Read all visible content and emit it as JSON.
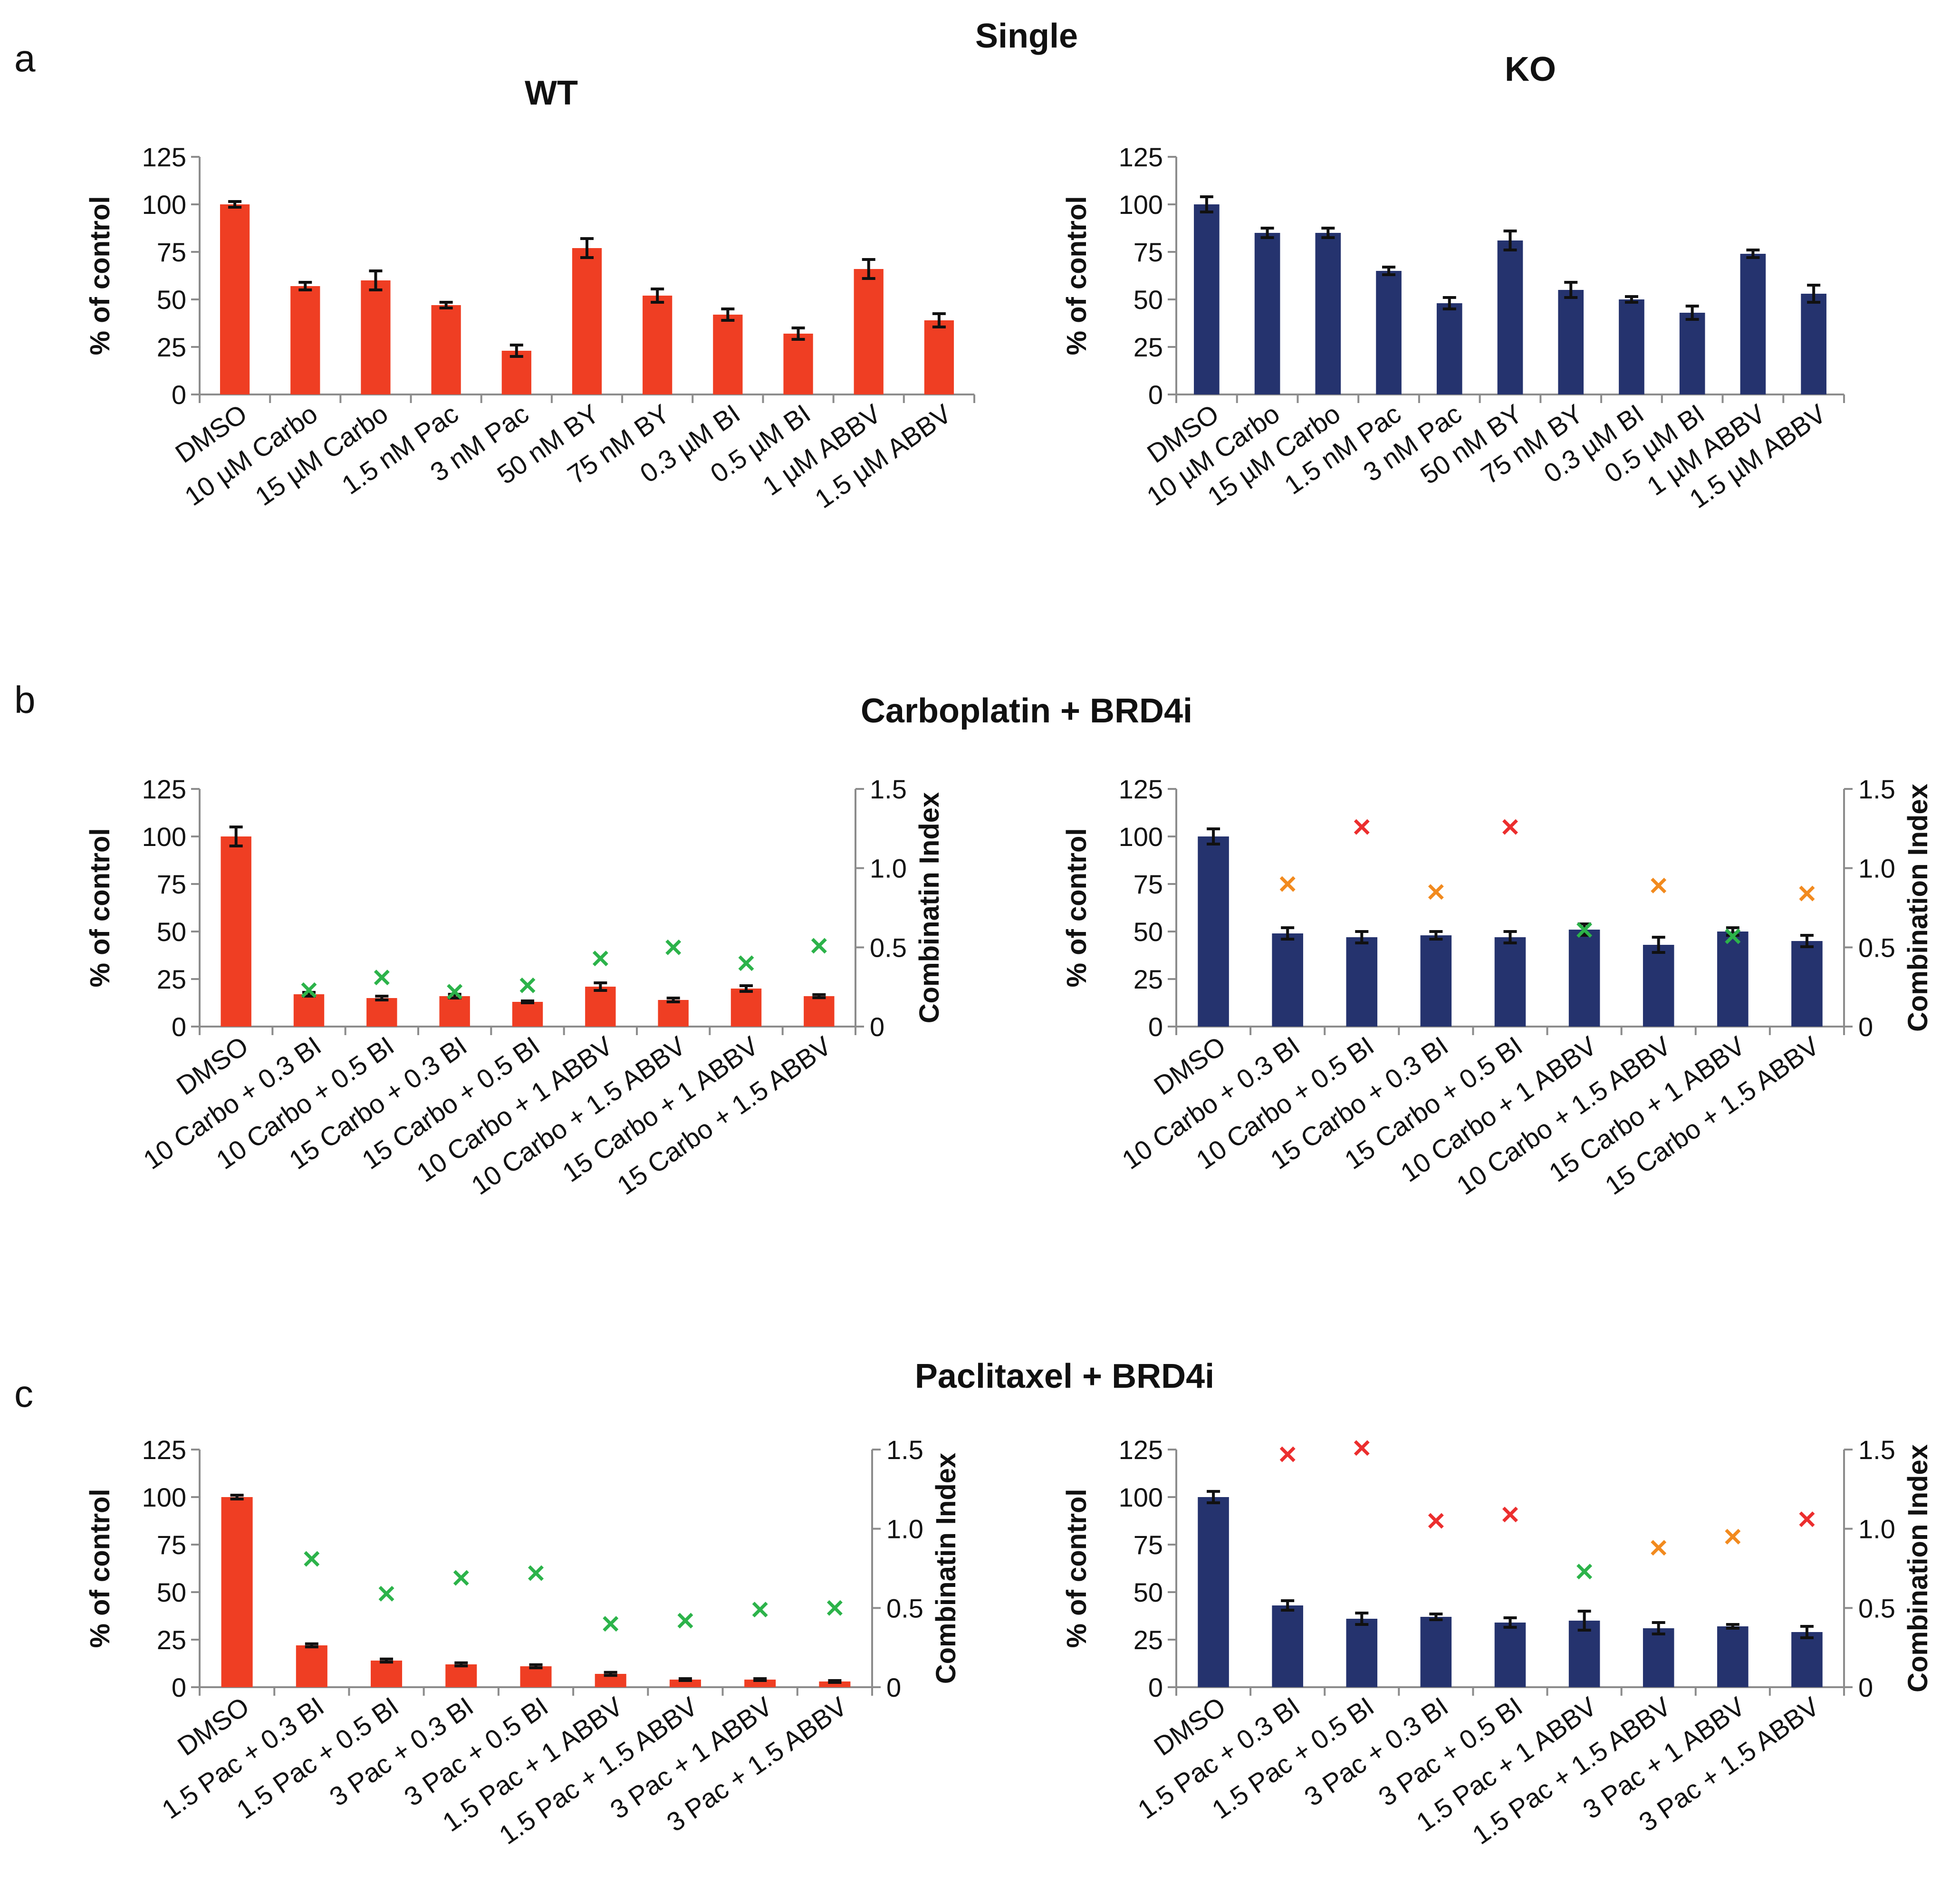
{
  "sections": {
    "a": {
      "letter": "a",
      "title": "Single"
    },
    "b": {
      "letter": "b",
      "title": "Carboplatin + BRD4i"
    },
    "c": {
      "letter": "c",
      "title": "Paclitaxel + BRD4i"
    }
  },
  "subtitles": {
    "wt": {
      "text": "WT",
      "color": "#e8412b"
    },
    "ko": {
      "text": "KO",
      "color": "#3d5aa8"
    }
  },
  "colors": {
    "wt_bar": "#ef3e23",
    "ko_bar": "#25336e",
    "ci_green": "#2cb34a",
    "ci_orange": "#f28a1e",
    "ci_red": "#ec2e2e"
  },
  "chart_data": [
    {
      "id": "a_wt",
      "type": "bar",
      "title": "WT",
      "ylabel": "% of control",
      "ylim": [
        0,
        125
      ],
      "yticks": [
        0,
        25,
        50,
        75,
        100,
        125
      ],
      "categories": [
        "DMSO",
        "10 µM Carbo",
        "15 µM Carbo",
        "1.5 nM Pac",
        "3 nM Pac",
        "50 nM BY",
        "75 nM BY",
        "0.3 µM BI",
        "0.5 µM BI",
        "1 µM ABBV",
        "1.5 µM ABBV"
      ],
      "values": [
        100,
        57,
        60,
        47,
        23,
        77,
        52,
        42,
        32,
        66,
        39
      ],
      "errors": [
        1.5,
        2,
        5,
        1.5,
        3,
        5,
        3.5,
        3,
        3,
        5,
        3.5
      ],
      "bar_color": "#ef3e23"
    },
    {
      "id": "a_ko",
      "type": "bar",
      "title": "KO",
      "ylabel": "% of control",
      "ylim": [
        0,
        125
      ],
      "yticks": [
        0,
        25,
        50,
        75,
        100,
        125
      ],
      "categories": [
        "DMSO",
        "10 µM Carbo",
        "15 µM Carbo",
        "1.5 nM Pac",
        "3 nM Pac",
        "50 nM BY",
        "75 nM BY",
        "0.3 µM BI",
        "0.5 µM BI",
        "1 µM ABBV",
        "1.5 µM ABBV"
      ],
      "values": [
        100,
        85,
        85,
        65,
        48,
        81,
        55,
        50,
        43,
        74,
        53
      ],
      "errors": [
        4,
        2.5,
        2.5,
        2,
        3,
        5,
        4,
        1.5,
        3.5,
        2,
        4.5
      ],
      "bar_color": "#25336e"
    },
    {
      "id": "b_wt",
      "type": "bar",
      "title": "",
      "ylabel": "% of control",
      "y2label": "Combinatin Index",
      "ylim": [
        0,
        125
      ],
      "yticks": [
        0,
        25,
        50,
        75,
        100,
        125
      ],
      "y2lim": [
        0,
        1.5
      ],
      "y2ticks": [
        0,
        0.5,
        1.0,
        1.5
      ],
      "y2ticklabels": [
        "0",
        "0.5",
        "1.0",
        "1.5"
      ],
      "categories": [
        "DMSO",
        "10 Carbo + 0.3 BI",
        "10 Carbo + 0.5 BI",
        "15 Carbo + 0.3 BI",
        "15 Carbo + 0.5 BI",
        "10 Carbo + 1 ABBV",
        "10 Carbo + 1.5 ABBV",
        "15 Carbo + 1 ABBV",
        "15 Carbo + 1.5 ABBV"
      ],
      "values": [
        100,
        17,
        15,
        16,
        13,
        21,
        14,
        20,
        16
      ],
      "errors": [
        5,
        1,
        1,
        1,
        0.5,
        2,
        1,
        1.5,
        0.8
      ],
      "bar_color": "#ef3e23",
      "combination_index": [
        null,
        0.23,
        0.31,
        0.22,
        0.26,
        0.43,
        0.5,
        0.4,
        0.51
      ],
      "ci_colors": [
        null,
        "#2cb34a",
        "#2cb34a",
        "#2cb34a",
        "#2cb34a",
        "#2cb34a",
        "#2cb34a",
        "#2cb34a",
        "#2cb34a"
      ]
    },
    {
      "id": "b_ko",
      "type": "bar",
      "title": "",
      "ylabel": "% of control",
      "y2label": "Combination Index",
      "ylim": [
        0,
        125
      ],
      "yticks": [
        0,
        25,
        50,
        75,
        100,
        125
      ],
      "y2lim": [
        0,
        1.5
      ],
      "y2ticks": [
        0,
        0.5,
        1.0,
        1.5
      ],
      "y2ticklabels": [
        "0",
        "0.5",
        "1.0",
        "1.5"
      ],
      "categories": [
        "DMSO",
        "10 Carbo + 0.3 BI",
        "10 Carbo + 0.5 BI",
        "15 Carbo + 0.3 BI",
        "15 Carbo + 0.5 BI",
        "10 Carbo + 1 ABBV",
        "10 Carbo + 1.5 ABBV",
        "15 Carbo + 1 ABBV",
        "15 Carbo + 1.5 ABBV"
      ],
      "values": [
        100,
        49,
        47,
        48,
        47,
        51,
        43,
        50,
        45
      ],
      "errors": [
        4,
        3,
        3,
        2,
        3,
        3,
        4,
        2,
        3
      ],
      "bar_color": "#25336e",
      "combination_index": [
        null,
        0.9,
        1.26,
        0.85,
        1.26,
        0.61,
        0.89,
        0.57,
        0.84
      ],
      "ci_colors": [
        null,
        "#f28a1e",
        "#ec2e2e",
        "#f28a1e",
        "#ec2e2e",
        "#2cb34a",
        "#f28a1e",
        "#2cb34a",
        "#f28a1e"
      ]
    },
    {
      "id": "c_wt",
      "type": "bar",
      "title": "",
      "ylabel": "% of control",
      "y2label": "Combinatin Index",
      "ylim": [
        0,
        125
      ],
      "yticks": [
        0,
        25,
        50,
        75,
        100,
        125
      ],
      "y2lim": [
        0,
        1.5
      ],
      "y2ticks": [
        0,
        0.5,
        1.0,
        1.5
      ],
      "y2ticklabels": [
        "0",
        "0.5",
        "1.0",
        "1.5"
      ],
      "categories": [
        "DMSO",
        "1.5 Pac + 0.3 BI",
        "1.5 Pac + 0.5 BI",
        "3 Pac + 0.3 BI",
        "3 Pac + 0.5 BI",
        "1.5 Pac + 1 ABBV",
        "1.5 Pac + 1.5 ABBV",
        "3 Pac + 1 ABBV",
        "3 Pac + 1.5 ABBV"
      ],
      "values": [
        100,
        22,
        14,
        12,
        11,
        7,
        4,
        4,
        3
      ],
      "errors": [
        1,
        0.8,
        0.8,
        0.8,
        0.8,
        0.8,
        0.5,
        0.5,
        0.5
      ],
      "bar_color": "#ef3e23",
      "combination_index": [
        null,
        0.81,
        0.59,
        0.69,
        0.72,
        0.4,
        0.42,
        0.49,
        0.5
      ],
      "ci_colors": [
        null,
        "#2cb34a",
        "#2cb34a",
        "#2cb34a",
        "#2cb34a",
        "#2cb34a",
        "#2cb34a",
        "#2cb34a",
        "#2cb34a"
      ]
    },
    {
      "id": "c_ko",
      "type": "bar",
      "title": "",
      "ylabel": "% of control",
      "y2label": "Combination Index",
      "ylim": [
        0,
        125
      ],
      "yticks": [
        0,
        25,
        50,
        75,
        100,
        125
      ],
      "y2lim": [
        0,
        1.5
      ],
      "y2ticks": [
        0,
        0.5,
        1.0,
        1.5
      ],
      "y2ticklabels": [
        "0",
        "0.5",
        "1.0",
        "1.5"
      ],
      "categories": [
        "DMSO",
        "1.5 Pac + 0.3 BI",
        "1.5 Pac + 0.5 BI",
        "3 Pac + 0.3 BI",
        "3 Pac + 0.5 BI",
        "1.5 Pac + 1 ABBV",
        "1.5 Pac + 1.5 ABBV",
        "3 Pac + 1 ABBV",
        "3 Pac + 1.5 ABBV"
      ],
      "values": [
        100,
        43,
        36,
        37,
        34,
        35,
        31,
        32,
        29
      ],
      "errors": [
        3,
        2.5,
        3,
        1.5,
        2.5,
        5,
        3,
        1,
        3
      ],
      "bar_color": "#25336e",
      "combination_index": [
        null,
        1.47,
        1.51,
        1.05,
        1.09,
        0.73,
        0.88,
        0.95,
        1.06
      ],
      "ci_colors": [
        null,
        "#ec2e2e",
        "#ec2e2e",
        "#ec2e2e",
        "#ec2e2e",
        "#2cb34a",
        "#f28a1e",
        "#f28a1e",
        "#ec2e2e"
      ]
    }
  ]
}
